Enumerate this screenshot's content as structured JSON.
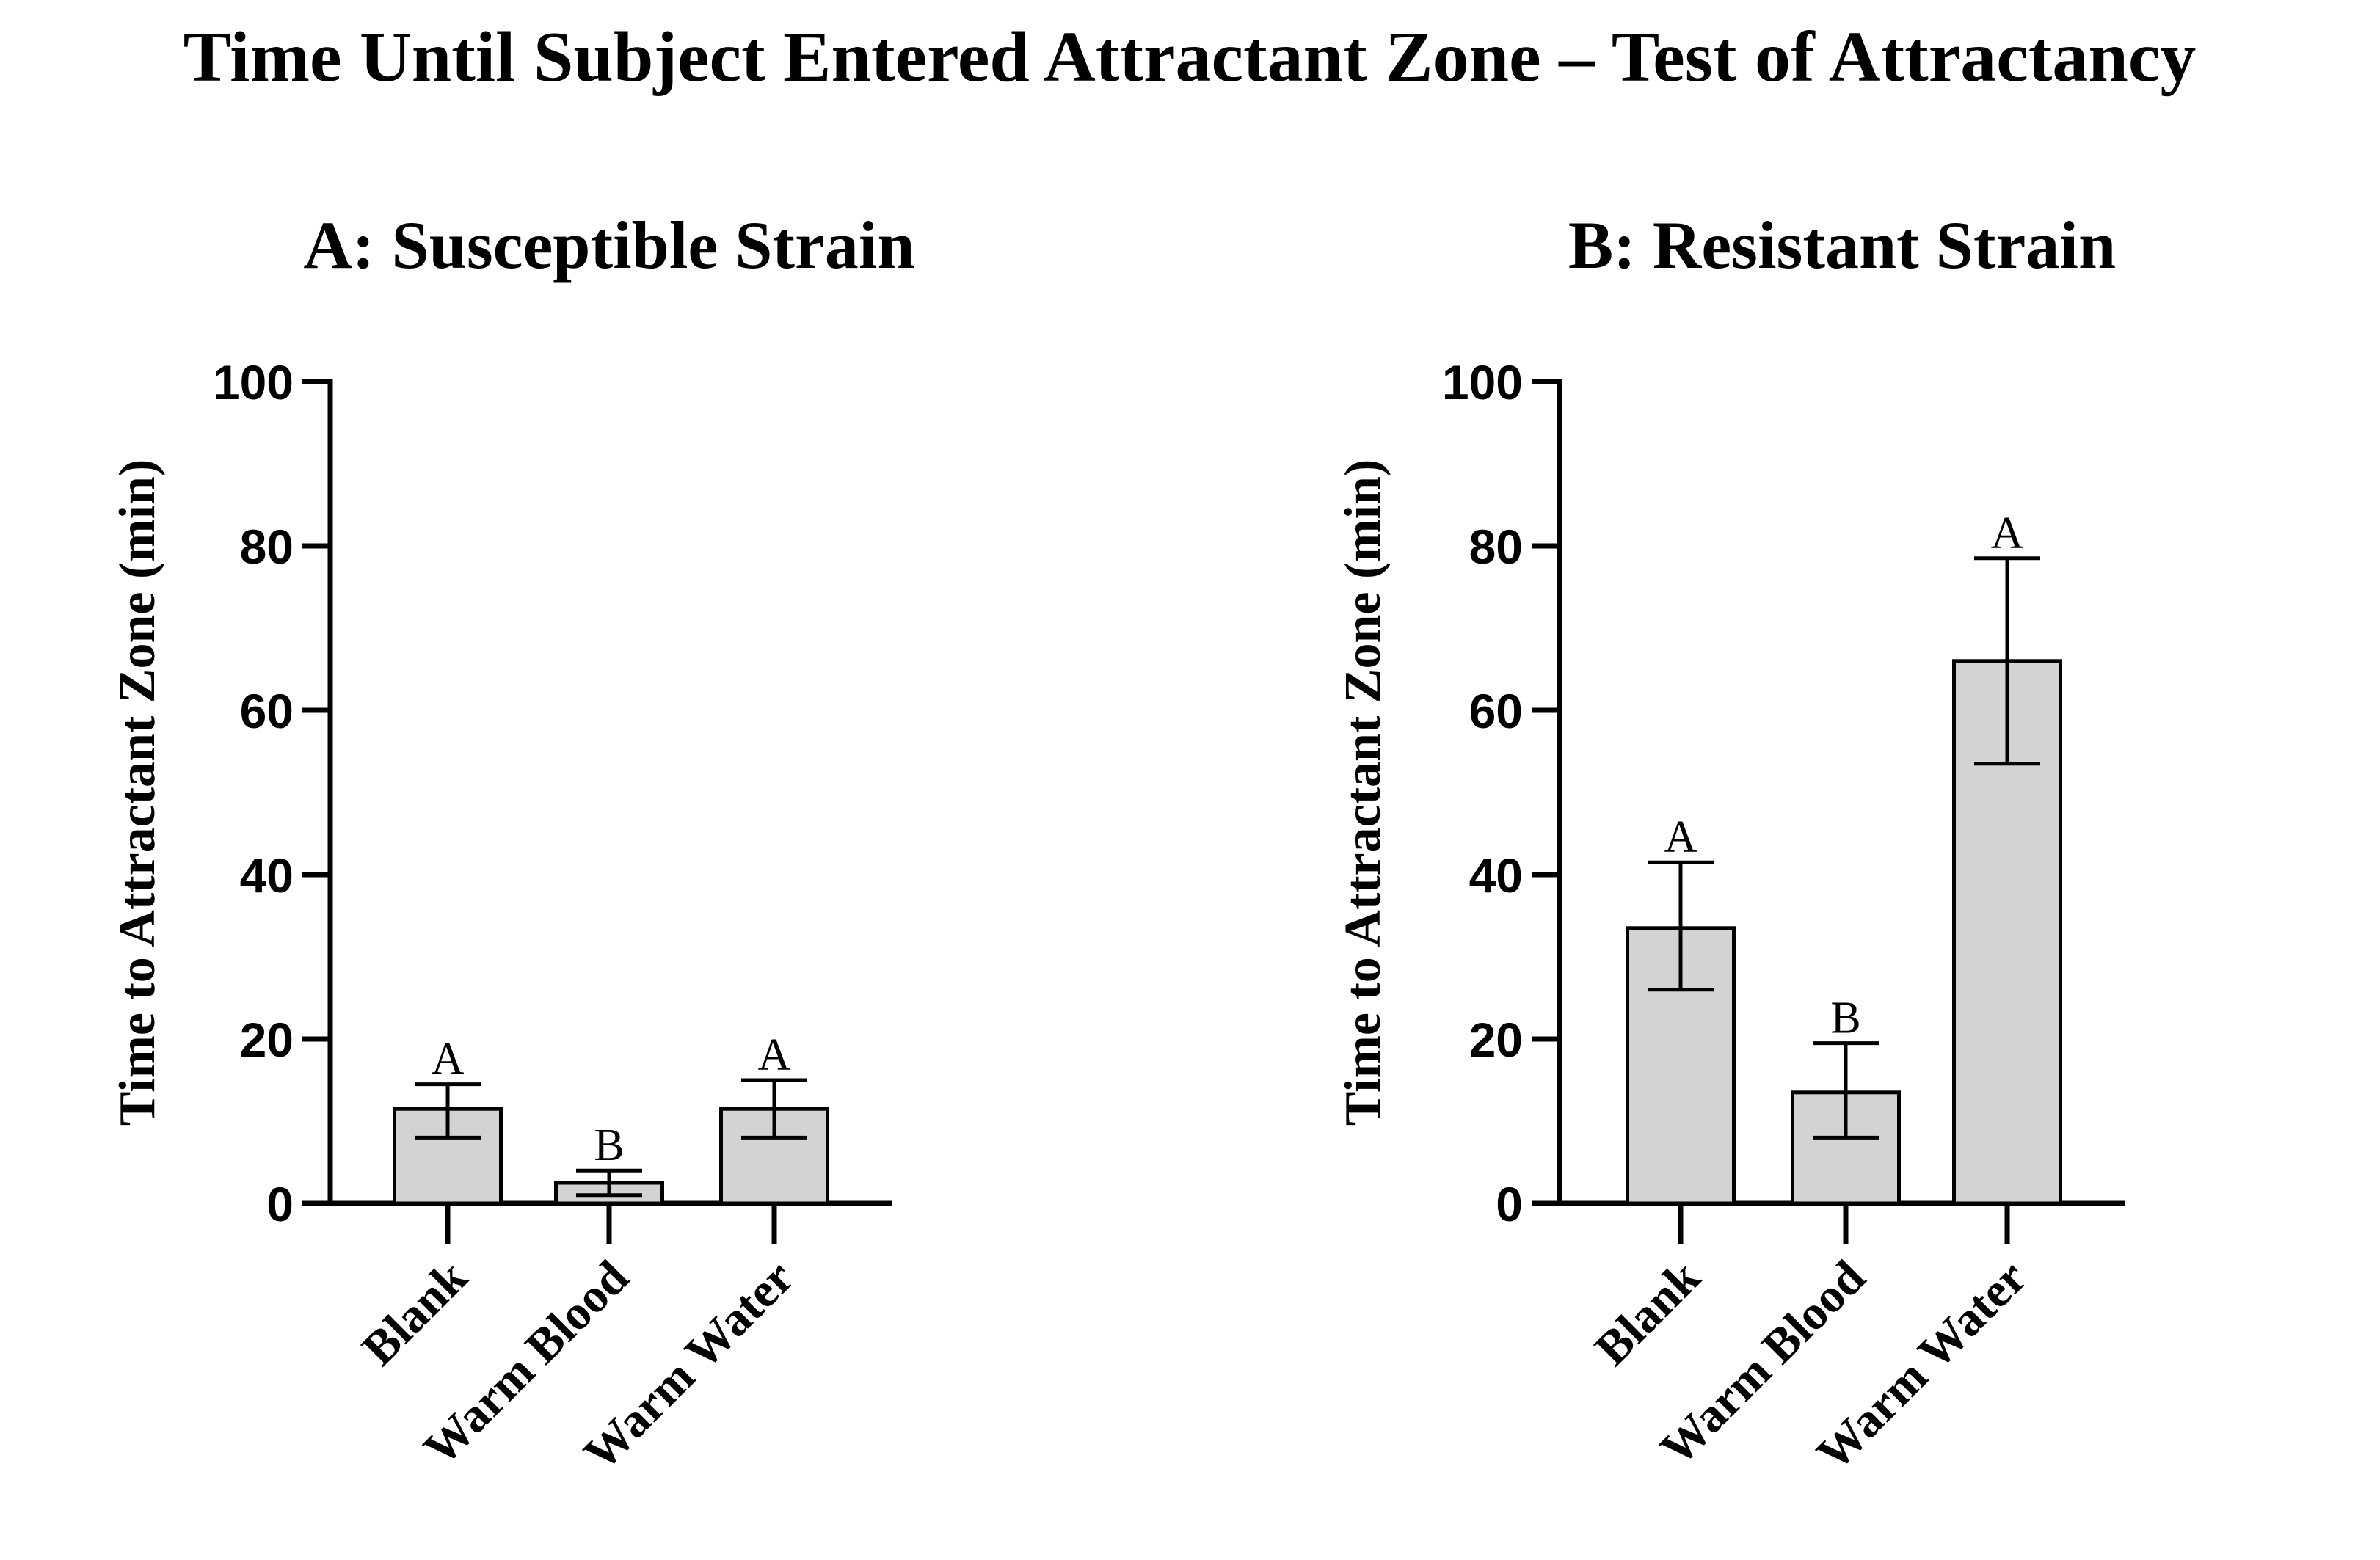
{
  "title": "Time Until Subject Entered Attractant Zone – Test of Attractancy",
  "chart_data": [
    {
      "type": "bar",
      "title": "A: Susceptible Strain",
      "xlabel": "",
      "ylabel": "Time to Attractant Zone (min)",
      "ylim": [
        0,
        100
      ],
      "yticks": [
        0,
        20,
        40,
        60,
        80,
        100
      ],
      "categories": [
        "Blank",
        "Warm Blood",
        "Warm Water"
      ],
      "values": [
        11.5,
        2.5,
        11.5
      ],
      "error_low": [
        8,
        1,
        8
      ],
      "error_high": [
        14.5,
        4,
        15
      ],
      "significance": [
        "A",
        "B",
        "A"
      ],
      "bar_color": "#d3d3d3",
      "edge_color": "#000000"
    },
    {
      "type": "bar",
      "title": "B: Resistant Strain",
      "xlabel": "",
      "ylabel": "Time to Attractant Zone (min)",
      "ylim": [
        0,
        100
      ],
      "yticks": [
        0,
        20,
        40,
        60,
        80,
        100
      ],
      "categories": [
        "Blank",
        "Warm Blood",
        "Warm Water"
      ],
      "values": [
        33.5,
        13.5,
        66
      ],
      "error_low": [
        26,
        8,
        53.5
      ],
      "error_high": [
        41.5,
        19.5,
        78.5
      ],
      "significance": [
        "A",
        "B",
        "A"
      ],
      "bar_color": "#d3d3d3",
      "edge_color": "#000000"
    }
  ]
}
